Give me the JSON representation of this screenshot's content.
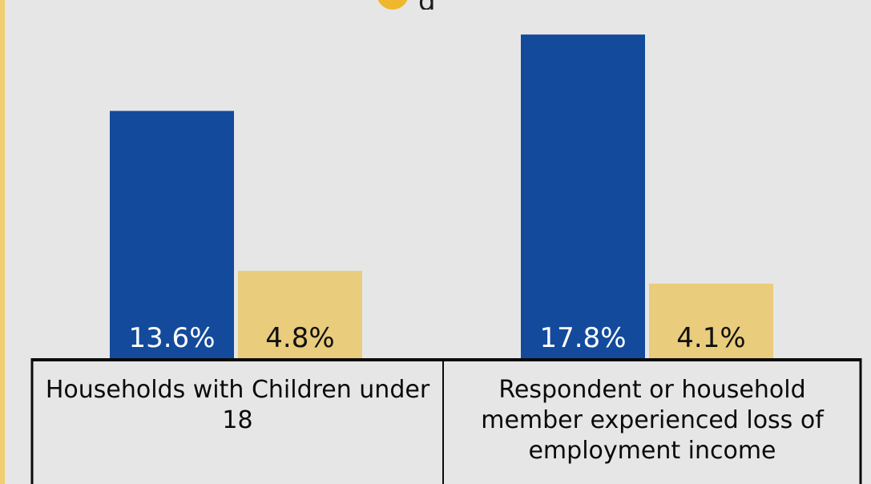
{
  "header": {
    "partial_title": "g"
  },
  "colors": {
    "series_1": "#134a9b",
    "series_2": "#e9cc7c",
    "icon": "#efb72e",
    "strip": "#f0cf73",
    "background": "#e6e6e6"
  },
  "chart_data": {
    "type": "bar",
    "categories": [
      "Households with Children under 18",
      "Respondent or household member experienced loss of employment income"
    ],
    "series": [
      {
        "values": [
          13.6,
          17.8
        ],
        "labels": [
          "13.6%",
          "17.8%"
        ]
      },
      {
        "values": [
          4.8,
          4.1
        ],
        "labels": [
          "4.8%",
          "4.1%"
        ]
      }
    ],
    "ylim": [
      0,
      19.7
    ],
    "grid": false,
    "legend": "none"
  }
}
